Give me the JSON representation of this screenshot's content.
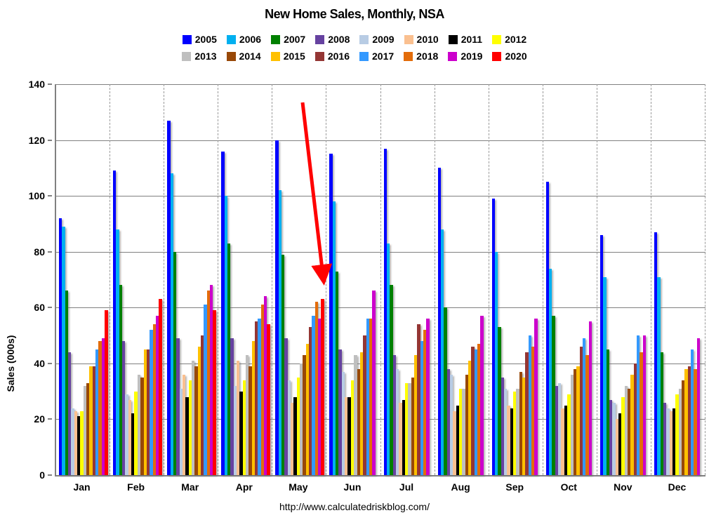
{
  "chart_data": {
    "type": "bar",
    "title": "New Home Sales, Monthly, NSA",
    "ylabel": "Sales (000s)",
    "xlabel": "",
    "source_url": "http://www.calculatedriskblog.com/",
    "ylim": [
      0,
      140
    ],
    "ytick_step": 20,
    "yticks": [
      0,
      20,
      40,
      60,
      80,
      100,
      120,
      140
    ],
    "grid": "horizontal solid, vertical dashed month separators",
    "legend_position": "top center, two rows",
    "categories": [
      "Jan",
      "Feb",
      "Mar",
      "Apr",
      "May",
      "Jun",
      "Jul",
      "Aug",
      "Sep",
      "Oct",
      "Nov",
      "Dec"
    ],
    "series": [
      {
        "name": "2005",
        "color": "#0000FF",
        "values": [
          92,
          109,
          127,
          116,
          120,
          115,
          117,
          110,
          99,
          105,
          86,
          87
        ]
      },
      {
        "name": "2006",
        "color": "#00B0F0",
        "values": [
          89,
          88,
          108,
          100,
          102,
          98,
          83,
          88,
          80,
          74,
          71,
          71
        ]
      },
      {
        "name": "2007",
        "color": "#008000",
        "values": [
          66,
          68,
          80,
          83,
          79,
          73,
          68,
          60,
          53,
          57,
          45,
          44
        ]
      },
      {
        "name": "2008",
        "color": "#6642A0",
        "values": [
          44,
          48,
          49,
          49,
          49,
          45,
          43,
          38,
          35,
          32,
          27,
          26
        ]
      },
      {
        "name": "2009",
        "color": "#B8CCE4",
        "values": [
          24,
          29,
          31,
          32,
          34,
          37,
          38,
          36,
          31,
          33,
          26,
          24
        ]
      },
      {
        "name": "2010",
        "color": "#FAC090",
        "values": [
          23,
          27,
          36,
          41,
          26,
          28,
          26,
          23,
          25,
          24,
          20,
          23
        ]
      },
      {
        "name": "2011",
        "color": "#000000",
        "values": [
          21,
          22,
          28,
          30,
          28,
          28,
          27,
          25,
          24,
          25,
          22,
          24
        ]
      },
      {
        "name": "2012",
        "color": "#FFFF00",
        "values": [
          23,
          30,
          34,
          34,
          35,
          34,
          33,
          31,
          30,
          29,
          28,
          29
        ]
      },
      {
        "name": "2013",
        "color": "#BFBFBF",
        "values": [
          32,
          36,
          41,
          43,
          40,
          43,
          33,
          31,
          31,
          36,
          32,
          31
        ]
      },
      {
        "name": "2014",
        "color": "#984807",
        "values": [
          33,
          35,
          39,
          39,
          43,
          38,
          35,
          36,
          37,
          38,
          31,
          34
        ]
      },
      {
        "name": "2015",
        "color": "#FFC000",
        "values": [
          39,
          45,
          46,
          48,
          47,
          44,
          43,
          41,
          35,
          39,
          36,
          38
        ]
      },
      {
        "name": "2016",
        "color": "#943634",
        "values": [
          39,
          45,
          50,
          55,
          53,
          50,
          54,
          46,
          44,
          46,
          40,
          39
        ]
      },
      {
        "name": "2017",
        "color": "#3399FF",
        "values": [
          45,
          52,
          61,
          56,
          57,
          56,
          48,
          45,
          50,
          49,
          50,
          45
        ]
      },
      {
        "name": "2018",
        "color": "#E36C0A",
        "values": [
          48,
          54,
          66,
          61,
          62,
          56,
          52,
          47,
          46,
          43,
          44,
          38
        ]
      },
      {
        "name": "2019",
        "color": "#CC00CC",
        "values": [
          49,
          57,
          68,
          64,
          56,
          66,
          56,
          57,
          56,
          55,
          50,
          49
        ]
      },
      {
        "name": "2020",
        "color": "#FF0000",
        "values": [
          59,
          63,
          59,
          54,
          63,
          null,
          null,
          null,
          null,
          null,
          null,
          null
        ]
      }
    ],
    "annotation": {
      "type": "arrow",
      "color": "#FF0000",
      "points_to": "May 2020 bar"
    }
  }
}
